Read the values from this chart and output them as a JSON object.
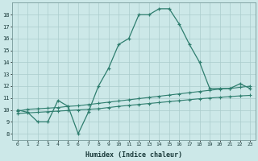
{
  "x": [
    0,
    1,
    2,
    3,
    4,
    5,
    6,
    7,
    8,
    9,
    10,
    11,
    12,
    13,
    14,
    15,
    16,
    17,
    18,
    19,
    20,
    21,
    22,
    23
  ],
  "y_main": [
    10.0,
    9.8,
    9.0,
    9.0,
    10.8,
    10.3,
    8.0,
    9.8,
    12.0,
    13.5,
    15.5,
    16.0,
    18.0,
    18.0,
    18.5,
    18.5,
    17.2,
    15.5,
    14.0,
    11.8,
    11.8,
    11.8,
    12.2,
    11.8
  ],
  "y_upper": [
    9.9,
    10.05,
    10.1,
    10.15,
    10.2,
    10.3,
    10.35,
    10.45,
    10.55,
    10.65,
    10.75,
    10.85,
    10.95,
    11.05,
    11.15,
    11.25,
    11.35,
    11.45,
    11.55,
    11.65,
    11.75,
    11.8,
    11.9,
    12.0
  ],
  "y_lower": [
    9.7,
    9.75,
    9.8,
    9.85,
    9.9,
    9.95,
    10.0,
    10.05,
    10.1,
    10.2,
    10.3,
    10.38,
    10.46,
    10.54,
    10.62,
    10.7,
    10.78,
    10.86,
    10.94,
    11.0,
    11.06,
    11.12,
    11.18,
    11.22
  ],
  "color": "#2e7d6e",
  "bg_color": "#cce8e8",
  "grid_color": "#aacccc",
  "xlabel": "Humidex (Indice chaleur)",
  "yticks": [
    8,
    9,
    10,
    11,
    12,
    13,
    14,
    15,
    16,
    17,
    18
  ],
  "xticks": [
    0,
    1,
    2,
    3,
    4,
    5,
    6,
    7,
    8,
    9,
    10,
    11,
    12,
    13,
    14,
    15,
    16,
    17,
    18,
    19,
    20,
    21,
    22,
    23
  ],
  "ylim": [
    7.5,
    19.0
  ],
  "xlim": [
    -0.5,
    23.5
  ]
}
